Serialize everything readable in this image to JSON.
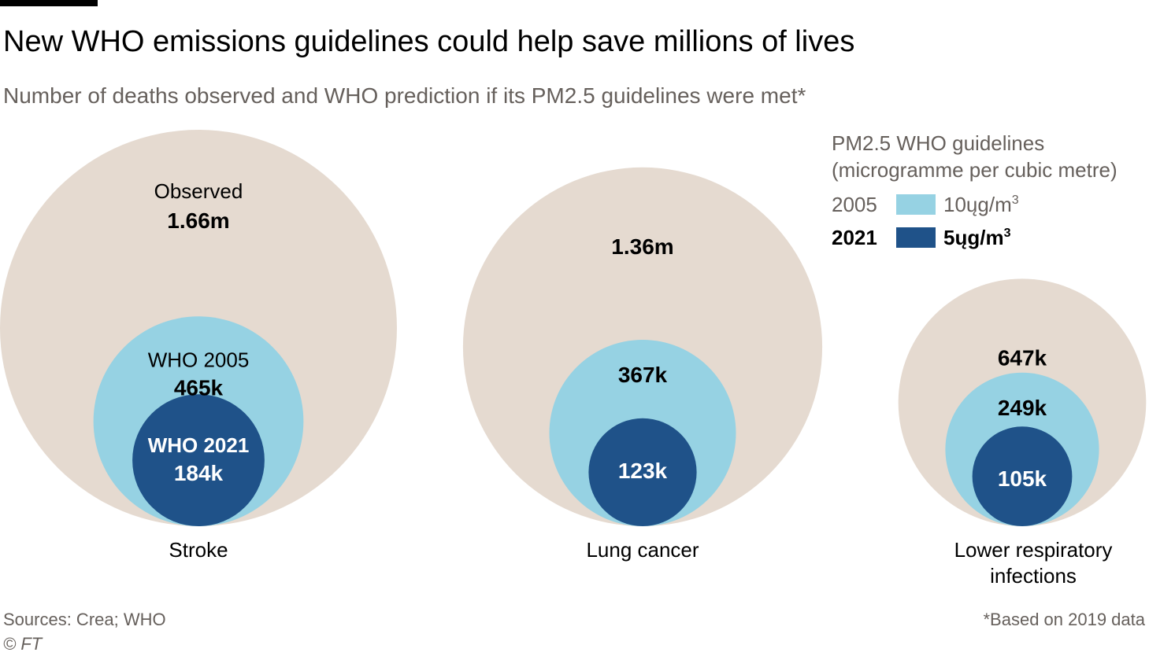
{
  "title": "New WHO emissions guidelines could help save millions of lives",
  "subtitle": "Number of deaths observed and WHO prediction if its PM2.5 guidelines were met*",
  "legend": {
    "title_line1": "PM2.5 WHO guidelines",
    "title_line2": "(microgramme per cubic metre)",
    "items": [
      {
        "year": "2005",
        "value": "10ųg/m",
        "unit_sup": "3",
        "color": "#96d2e3"
      },
      {
        "year": "2021",
        "value": "5ųg/m",
        "unit_sup": "3",
        "color": "#1f5289"
      }
    ]
  },
  "chart_data": {
    "type": "nested-bubble",
    "series_labels": {
      "observed": "Observed",
      "who2005": "WHO 2005",
      "who2021": "WHO 2021"
    },
    "colors": {
      "observed": "#e5dad0",
      "who2005": "#96d2e3",
      "who2021": "#1f5289"
    },
    "categories": [
      {
        "label": [
          "Stroke"
        ],
        "observed": 1660000,
        "who2005": 465000,
        "who2021": 184000,
        "observed_text": "1.66m",
        "who2005_text": "465k",
        "who2021_text": "184k",
        "show_series_labels": true
      },
      {
        "label": [
          "Lung cancer"
        ],
        "observed": 1360000,
        "who2005": 367000,
        "who2021": 123000,
        "observed_text": "1.36m",
        "who2005_text": "367k",
        "who2021_text": "123k",
        "show_series_labels": false
      },
      {
        "label": [
          "Lower respiratory",
          "infections"
        ],
        "observed": 647000,
        "who2005": 249000,
        "who2021": 105000,
        "observed_text": "647k",
        "who2005_text": "249k",
        "who2021_text": "105k",
        "show_series_labels": false
      }
    ]
  },
  "footer": {
    "source": "Sources: Crea; WHO",
    "copyright": "© FT",
    "note": "*Based on 2019 data"
  }
}
